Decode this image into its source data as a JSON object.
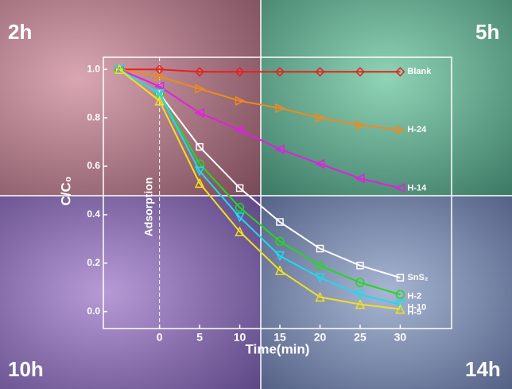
{
  "chart_data": {
    "type": "line",
    "panel_labels": [
      "2h",
      "5h",
      "10h",
      "14h"
    ],
    "x_label": "Time(min)",
    "y_label": "C/C₀",
    "annotation": "Adsorption",
    "x": [
      -5,
      0,
      5,
      10,
      15,
      20,
      25,
      30
    ],
    "xlim": [
      -7,
      36.4
    ],
    "xticks": [
      0,
      5,
      10,
      15,
      20,
      25,
      30
    ],
    "ylim": [
      -0.07,
      1.05
    ],
    "yticks": [
      {
        "value": 0,
        "label": "0.0"
      },
      0.2,
      0.4,
      0.6,
      0.8,
      {
        "value": 1,
        "label": "1.0"
      }
    ],
    "series": [
      {
        "name": "Blank",
        "color": "#e8201c",
        "marker": "diamond",
        "values": [
          1,
          1,
          0.99,
          0.99,
          0.99,
          0.99,
          0.99,
          0.99
        ]
      },
      {
        "name": "H-24",
        "color": "#f08a1c",
        "marker": "tri-right",
        "values": [
          1,
          0.97,
          0.92,
          0.87,
          0.84,
          0.8,
          0.77,
          0.75
        ]
      },
      {
        "name": "H-14",
        "color": "#e020e0",
        "marker": "tri-left",
        "values": [
          1,
          0.93,
          0.82,
          0.75,
          0.67,
          0.61,
          0.55,
          0.51
        ]
      },
      {
        "name": "SnS₂",
        "color": "#ffffff",
        "marker": "square",
        "values": [
          1,
          0.9,
          0.68,
          0.51,
          0.37,
          0.26,
          0.19,
          0.14
        ]
      },
      {
        "name": "H-2",
        "color": "#22d822",
        "marker": "circle",
        "values": [
          1,
          0.9,
          0.61,
          0.43,
          0.29,
          0.19,
          0.12,
          0.07
        ]
      },
      {
        "name": "H-10",
        "color": "#20d8f0",
        "marker": "tri-down",
        "values": [
          1,
          0.9,
          0.58,
          0.39,
          0.23,
          0.14,
          0.07,
          0.03
        ]
      },
      {
        "name": "H-5",
        "color": "#f0e020",
        "marker": "tri-up",
        "values": [
          1,
          0.87,
          0.53,
          0.33,
          0.17,
          0.06,
          0.03,
          0.01
        ]
      }
    ]
  }
}
